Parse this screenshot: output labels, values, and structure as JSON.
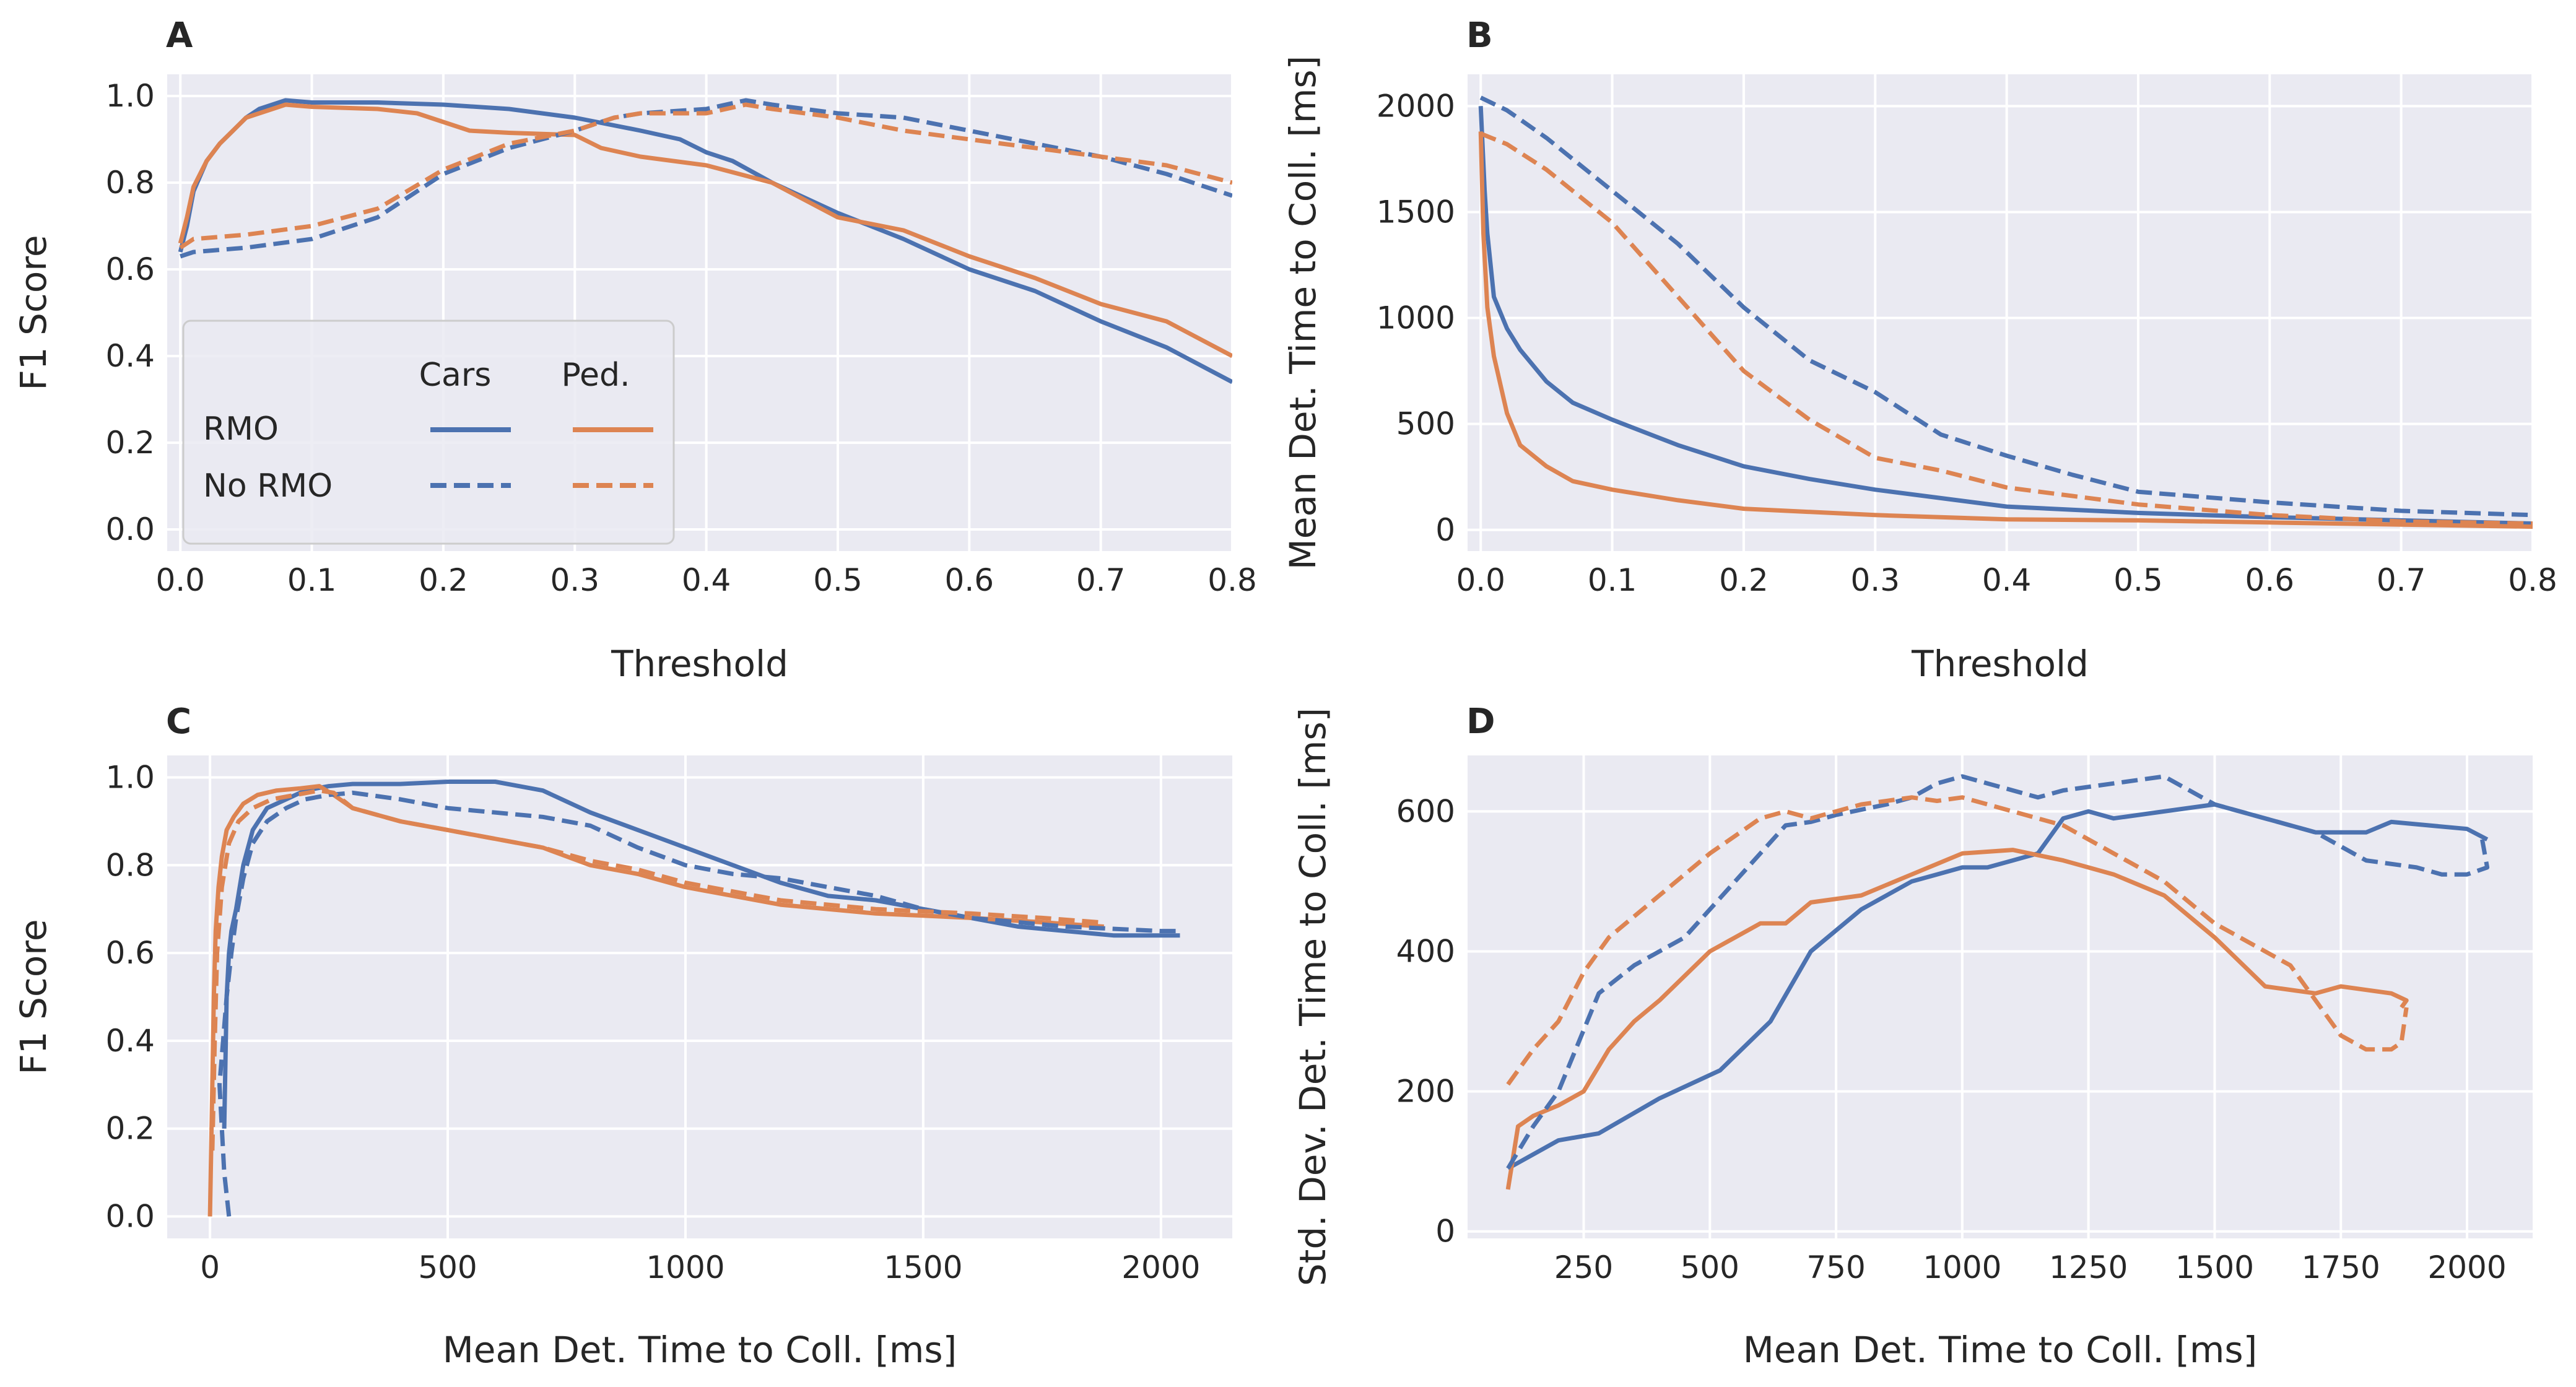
{
  "colors": {
    "cars": "#4C72B0",
    "ped": "#DD8452",
    "plot_bg": "#EAEAF2",
    "grid": "#FFFFFF"
  },
  "legend": {
    "col_headers": [
      "Cars",
      "Ped."
    ],
    "row_labels": [
      "RMO",
      "No RMO"
    ],
    "placement": "lower-left of panel A"
  },
  "chart_data": [
    {
      "panel": "A",
      "type": "line",
      "xlabel": "Threshold",
      "ylabel": "F1 Score",
      "xlim": [
        -0.01,
        0.8
      ],
      "ylim": [
        -0.05,
        1.05
      ],
      "xticks": [
        0.0,
        0.1,
        0.2,
        0.3,
        0.4,
        0.5,
        0.6,
        0.7,
        0.8
      ],
      "yticks": [
        0.0,
        0.2,
        0.4,
        0.6,
        0.8,
        1.0
      ],
      "grid": true,
      "series": [
        {
          "object": "Cars",
          "method": "RMO",
          "style": "solid",
          "x": [
            0,
            0.005,
            0.01,
            0.02,
            0.03,
            0.04,
            0.05,
            0.06,
            0.07,
            0.08,
            0.1,
            0.15,
            0.2,
            0.25,
            0.3,
            0.35,
            0.38,
            0.4,
            0.42,
            0.45,
            0.5,
            0.55,
            0.6,
            0.65,
            0.7,
            0.75,
            0.8
          ],
          "y": [
            0.64,
            0.7,
            0.78,
            0.85,
            0.89,
            0.92,
            0.95,
            0.97,
            0.98,
            0.99,
            0.985,
            0.985,
            0.98,
            0.97,
            0.95,
            0.92,
            0.9,
            0.87,
            0.85,
            0.8,
            0.73,
            0.67,
            0.6,
            0.55,
            0.48,
            0.42,
            0.34
          ]
        },
        {
          "object": "Pedestrians",
          "method": "RMO",
          "style": "solid",
          "x": [
            0,
            0.005,
            0.01,
            0.02,
            0.03,
            0.04,
            0.05,
            0.06,
            0.07,
            0.08,
            0.1,
            0.15,
            0.18,
            0.2,
            0.22,
            0.25,
            0.3,
            0.32,
            0.35,
            0.4,
            0.45,
            0.5,
            0.55,
            0.6,
            0.65,
            0.7,
            0.75,
            0.8
          ],
          "y": [
            0.66,
            0.72,
            0.79,
            0.85,
            0.89,
            0.92,
            0.95,
            0.96,
            0.97,
            0.98,
            0.975,
            0.97,
            0.96,
            0.94,
            0.92,
            0.915,
            0.91,
            0.88,
            0.86,
            0.84,
            0.8,
            0.72,
            0.69,
            0.63,
            0.58,
            0.52,
            0.48,
            0.4
          ]
        },
        {
          "object": "Cars",
          "method": "No RMO",
          "style": "dashed",
          "x": [
            0,
            0.01,
            0.05,
            0.1,
            0.15,
            0.2,
            0.25,
            0.3,
            0.33,
            0.35,
            0.4,
            0.43,
            0.45,
            0.5,
            0.55,
            0.6,
            0.65,
            0.7,
            0.75,
            0.8
          ],
          "y": [
            0.63,
            0.64,
            0.65,
            0.67,
            0.72,
            0.82,
            0.88,
            0.92,
            0.95,
            0.96,
            0.97,
            0.99,
            0.98,
            0.96,
            0.95,
            0.92,
            0.89,
            0.86,
            0.82,
            0.77
          ]
        },
        {
          "object": "Pedestrians",
          "method": "No RMO",
          "style": "dashed",
          "x": [
            0,
            0.01,
            0.05,
            0.1,
            0.15,
            0.2,
            0.25,
            0.3,
            0.33,
            0.35,
            0.4,
            0.43,
            0.45,
            0.5,
            0.55,
            0.6,
            0.65,
            0.7,
            0.75,
            0.8
          ],
          "y": [
            0.65,
            0.67,
            0.68,
            0.7,
            0.74,
            0.83,
            0.89,
            0.92,
            0.95,
            0.96,
            0.96,
            0.98,
            0.97,
            0.95,
            0.92,
            0.9,
            0.88,
            0.86,
            0.84,
            0.8
          ]
        }
      ]
    },
    {
      "panel": "B",
      "type": "line",
      "xlabel": "Threshold",
      "ylabel": "Mean Det. Time to Coll. [ms]",
      "xlim": [
        -0.01,
        0.8
      ],
      "ylim": [
        -100,
        2150
      ],
      "xticks": [
        0.0,
        0.1,
        0.2,
        0.3,
        0.4,
        0.5,
        0.6,
        0.7,
        0.8
      ],
      "yticks": [
        0,
        500,
        1000,
        1500,
        2000
      ],
      "grid": true,
      "series": [
        {
          "object": "Cars",
          "method": "RMO",
          "style": "solid",
          "x": [
            0,
            0.003,
            0.005,
            0.01,
            0.02,
            0.03,
            0.05,
            0.07,
            0.1,
            0.15,
            0.2,
            0.25,
            0.3,
            0.4,
            0.5,
            0.6,
            0.7,
            0.8
          ],
          "y": [
            2000,
            1600,
            1400,
            1100,
            950,
            850,
            700,
            600,
            520,
            400,
            300,
            240,
            190,
            110,
            80,
            60,
            45,
            30
          ]
        },
        {
          "object": "Pedestrians",
          "method": "RMO",
          "style": "solid",
          "x": [
            0,
            0.002,
            0.005,
            0.01,
            0.02,
            0.03,
            0.05,
            0.07,
            0.1,
            0.15,
            0.2,
            0.3,
            0.4,
            0.5,
            0.6,
            0.7,
            0.8
          ],
          "y": [
            1880,
            1400,
            1050,
            820,
            550,
            400,
            300,
            230,
            190,
            140,
            100,
            70,
            50,
            45,
            35,
            25,
            15
          ]
        },
        {
          "object": "Cars",
          "method": "No RMO",
          "style": "dashed",
          "x": [
            0,
            0.02,
            0.05,
            0.1,
            0.15,
            0.2,
            0.25,
            0.3,
            0.35,
            0.4,
            0.45,
            0.5,
            0.6,
            0.7,
            0.8
          ],
          "y": [
            2040,
            1980,
            1850,
            1600,
            1350,
            1050,
            800,
            650,
            450,
            350,
            260,
            180,
            130,
            90,
            70
          ]
        },
        {
          "object": "Pedestrians",
          "method": "No RMO",
          "style": "dashed",
          "x": [
            0,
            0.02,
            0.05,
            0.1,
            0.15,
            0.2,
            0.25,
            0.3,
            0.35,
            0.4,
            0.45,
            0.5,
            0.6,
            0.7,
            0.8
          ],
          "y": [
            1870,
            1820,
            1700,
            1450,
            1100,
            750,
            520,
            340,
            280,
            200,
            160,
            120,
            70,
            40,
            30
          ]
        }
      ]
    },
    {
      "panel": "C",
      "type": "line",
      "xlabel": "Mean Det. Time to Coll. [ms]",
      "ylabel": "F1 Score",
      "xlim": [
        -90,
        2150
      ],
      "ylim": [
        -0.05,
        1.05
      ],
      "xticks": [
        0,
        500,
        1000,
        1500,
        2000
      ],
      "yticks": [
        0.0,
        0.2,
        0.4,
        0.6,
        0.8,
        1.0
      ],
      "grid": true,
      "series": [
        {
          "object": "Cars",
          "method": "RMO",
          "style": "solid",
          "x": [
            30,
            35,
            40,
            45,
            55,
            70,
            90,
            120,
            160,
            200,
            250,
            300,
            400,
            500,
            600,
            700,
            800,
            900,
            1000,
            1100,
            1200,
            1300,
            1400,
            1500,
            1600,
            1700,
            1800,
            1900,
            2000,
            2040
          ],
          "y": [
            0.2,
            0.5,
            0.6,
            0.65,
            0.7,
            0.8,
            0.88,
            0.93,
            0.95,
            0.97,
            0.98,
            0.985,
            0.985,
            0.99,
            0.99,
            0.97,
            0.92,
            0.88,
            0.84,
            0.8,
            0.76,
            0.73,
            0.72,
            0.7,
            0.68,
            0.66,
            0.65,
            0.64,
            0.64,
            0.64
          ]
        },
        {
          "object": "Pedestrians",
          "method": "RMO",
          "style": "solid",
          "x": [
            0,
            5,
            8,
            12,
            18,
            25,
            35,
            50,
            70,
            100,
            140,
            190,
            230,
            260,
            300,
            400,
            500,
            600,
            700,
            800,
            900,
            1000,
            1200,
            1400,
            1600,
            1750,
            1880
          ],
          "y": [
            0,
            0.3,
            0.5,
            0.65,
            0.75,
            0.82,
            0.88,
            0.91,
            0.94,
            0.96,
            0.97,
            0.975,
            0.98,
            0.96,
            0.93,
            0.9,
            0.88,
            0.86,
            0.84,
            0.8,
            0.78,
            0.75,
            0.71,
            0.69,
            0.68,
            0.67,
            0.66
          ]
        },
        {
          "object": "Cars",
          "method": "No RMO",
          "style": "dashed",
          "x": [
            40,
            30,
            20,
            35,
            45,
            55,
            70,
            90,
            120,
            160,
            200,
            250,
            300,
            400,
            500,
            600,
            700,
            800,
            900,
            1000,
            1100,
            1200,
            1300,
            1400,
            1500,
            1600,
            1800,
            2000,
            2040
          ],
          "y": [
            0.0,
            0.1,
            0.3,
            0.5,
            0.6,
            0.68,
            0.77,
            0.85,
            0.9,
            0.93,
            0.95,
            0.96,
            0.965,
            0.95,
            0.93,
            0.92,
            0.91,
            0.89,
            0.84,
            0.8,
            0.78,
            0.77,
            0.75,
            0.73,
            0.7,
            0.68,
            0.66,
            0.65,
            0.65
          ]
        },
        {
          "object": "Pedestrians",
          "method": "No RMO",
          "style": "dashed",
          "x": [
            5,
            10,
            15,
            25,
            40,
            60,
            90,
            130,
            180,
            230,
            260,
            300,
            400,
            500,
            600,
            700,
            800,
            900,
            1000,
            1200,
            1400,
            1600,
            1750,
            1870
          ],
          "y": [
            0.15,
            0.4,
            0.6,
            0.75,
            0.85,
            0.9,
            0.93,
            0.95,
            0.96,
            0.97,
            0.965,
            0.93,
            0.9,
            0.88,
            0.86,
            0.84,
            0.81,
            0.79,
            0.76,
            0.72,
            0.7,
            0.69,
            0.68,
            0.67
          ]
        }
      ]
    },
    {
      "panel": "D",
      "type": "line",
      "xlabel": "Mean Det. Time to Coll. [ms]",
      "ylabel": "Std. Dev. Det. Time to Coll. [ms]",
      "xlim": [
        20,
        2130
      ],
      "ylim": [
        -10,
        680
      ],
      "xticks": [
        250,
        500,
        750,
        1000,
        1250,
        1500,
        1750,
        2000
      ],
      "yticks": [
        0,
        200,
        400,
        600
      ],
      "grid": true,
      "series": [
        {
          "object": "Cars",
          "method": "RMO",
          "style": "solid",
          "x": [
            100,
            150,
            200,
            280,
            400,
            520,
            620,
            700,
            800,
            900,
            950,
            1000,
            1050,
            1100,
            1150,
            1200,
            1250,
            1300,
            1400,
            1500,
            1600,
            1700,
            1800,
            1850,
            2000,
            2040
          ],
          "y": [
            90,
            110,
            130,
            140,
            190,
            230,
            300,
            400,
            460,
            500,
            510,
            520,
            520,
            530,
            540,
            590,
            600,
            590,
            600,
            610,
            590,
            570,
            570,
            585,
            575,
            560
          ]
        },
        {
          "object": "Pedestrians",
          "method": "RMO",
          "style": "solid",
          "x": [
            100,
            120,
            150,
            200,
            250,
            300,
            350,
            400,
            500,
            600,
            650,
            700,
            800,
            900,
            1000,
            1100,
            1200,
            1300,
            1400,
            1500,
            1600,
            1700,
            1750,
            1850,
            1880,
            1870
          ],
          "y": [
            60,
            150,
            165,
            180,
            200,
            260,
            300,
            330,
            400,
            440,
            440,
            470,
            480,
            510,
            540,
            545,
            530,
            510,
            480,
            420,
            350,
            340,
            350,
            340,
            330,
            320
          ]
        },
        {
          "object": "Cars",
          "method": "No RMO",
          "style": "dashed",
          "x": [
            100,
            150,
            200,
            280,
            350,
            450,
            550,
            650,
            700,
            750,
            850,
            900,
            950,
            1000,
            1050,
            1100,
            1150,
            1200,
            1300,
            1400,
            1500,
            1600,
            1700,
            1800,
            1900,
            1950,
            2000,
            2040,
            2030
          ],
          "y": [
            90,
            150,
            200,
            340,
            380,
            420,
            500,
            580,
            585,
            595,
            610,
            620,
            640,
            650,
            640,
            630,
            620,
            630,
            640,
            650,
            610,
            590,
            570,
            530,
            520,
            510,
            510,
            520,
            560
          ]
        },
        {
          "object": "Pedestrians",
          "method": "No RMO",
          "style": "dashed",
          "x": [
            100,
            120,
            150,
            200,
            250,
            300,
            400,
            500,
            600,
            650,
            700,
            800,
            900,
            950,
            1000,
            1050,
            1100,
            1150,
            1200,
            1300,
            1400,
            1500,
            1600,
            1650,
            1700,
            1750,
            1800,
            1850,
            1870,
            1880
          ],
          "y": [
            210,
            230,
            260,
            300,
            370,
            420,
            480,
            540,
            590,
            600,
            590,
            610,
            620,
            615,
            620,
            610,
            600,
            590,
            580,
            540,
            500,
            440,
            400,
            380,
            330,
            280,
            260,
            260,
            270,
            320
          ]
        }
      ]
    }
  ],
  "panels": {
    "A": {
      "letter": "A",
      "xlabel": "Threshold",
      "ylabel": "F1 Score",
      "xtick_labels": [
        "0.0",
        "0.1",
        "0.2",
        "0.3",
        "0.4",
        "0.5",
        "0.6",
        "0.7",
        "0.8"
      ],
      "ytick_labels": [
        "0.0",
        "0.2",
        "0.4",
        "0.6",
        "0.8",
        "1.0"
      ]
    },
    "B": {
      "letter": "B",
      "xlabel": "Threshold",
      "ylabel": "Mean Det. Time to Coll. [ms]",
      "xtick_labels": [
        "0.0",
        "0.1",
        "0.2",
        "0.3",
        "0.4",
        "0.5",
        "0.6",
        "0.7",
        "0.8"
      ],
      "ytick_labels": [
        "0",
        "500",
        "1000",
        "1500",
        "2000"
      ]
    },
    "C": {
      "letter": "C",
      "xlabel": "Mean Det. Time to Coll. [ms]",
      "ylabel": "F1 Score",
      "xtick_labels": [
        "0",
        "500",
        "1000",
        "1500",
        "2000"
      ],
      "ytick_labels": [
        "0.0",
        "0.2",
        "0.4",
        "0.6",
        "0.8",
        "1.0"
      ]
    },
    "D": {
      "letter": "D",
      "xlabel": "Mean Det. Time to Coll. [ms]",
      "ylabel": "Std. Dev. Det. Time to Coll. [ms]",
      "xtick_labels": [
        "250",
        "500",
        "750",
        "1000",
        "1250",
        "1500",
        "1750",
        "2000"
      ],
      "ytick_labels": [
        "0",
        "200",
        "400",
        "600"
      ]
    }
  }
}
